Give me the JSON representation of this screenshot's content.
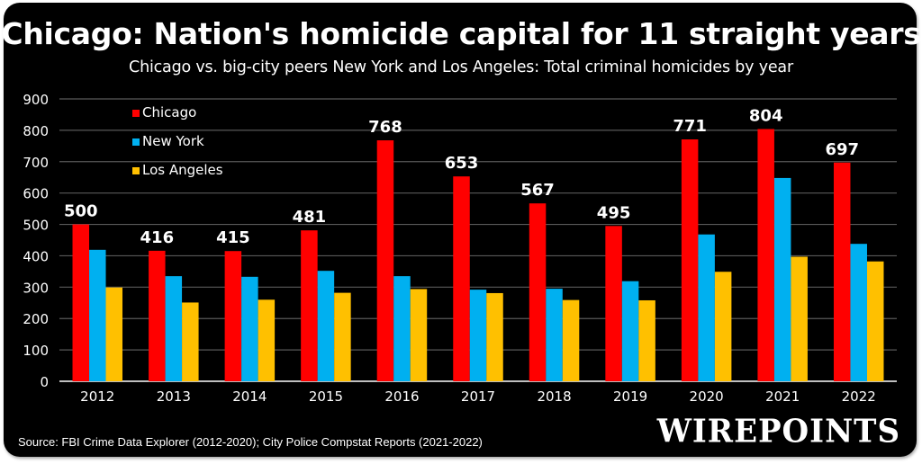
{
  "title": "Chicago: Nation's homicide capital for 11 straight years",
  "subtitle": "Chicago vs. big-city peers New York and Los Angeles: Total criminal homicides by year",
  "source": "Source: FBI Crime Data Explorer (2012-2020); City Police Compstat Reports (2021-2022)",
  "brand": "WIREPOINTS",
  "colors": {
    "background": "#000000",
    "chicago": "#FF0000",
    "new_york": "#00B0F0",
    "los_angeles": "#FFC000",
    "gridline": "#595959",
    "axis": "#BFBFBF",
    "text": "#FFFFFF"
  },
  "chart_data": {
    "type": "bar",
    "title": "Chicago: Nation's homicide capital for 11 straight years",
    "subtitle": "Chicago vs. big-city peers New York and Los Angeles: Total criminal homicides by year",
    "xlabel": "",
    "ylabel": "",
    "ylim": [
      0,
      900
    ],
    "yticks": [
      0,
      100,
      200,
      300,
      400,
      500,
      600,
      700,
      800,
      900
    ],
    "grid": true,
    "legend_position": "top-left",
    "categories": [
      "2012",
      "2013",
      "2014",
      "2015",
      "2016",
      "2017",
      "2018",
      "2019",
      "2020",
      "2021",
      "2022"
    ],
    "series": [
      {
        "name": "Chicago",
        "color": "#FF0000",
        "values": [
          500,
          416,
          415,
          481,
          768,
          653,
          567,
          495,
          771,
          804,
          697
        ],
        "labeled": true
      },
      {
        "name": "New York",
        "color": "#00B0F0",
        "values": [
          419,
          335,
          333,
          352,
          335,
          292,
          295,
          319,
          468,
          648,
          438
        ],
        "labeled": false
      },
      {
        "name": "Los Angeles",
        "color": "#FFC000",
        "values": [
          299,
          251,
          260,
          282,
          294,
          281,
          259,
          258,
          349,
          397,
          382
        ],
        "labeled": false
      }
    ]
  }
}
